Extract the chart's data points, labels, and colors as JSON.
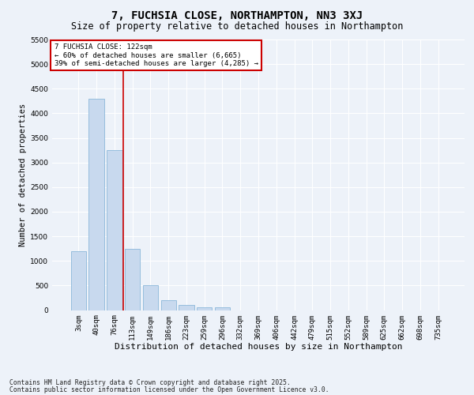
{
  "title": "7, FUCHSIA CLOSE, NORTHAMPTON, NN3 3XJ",
  "subtitle": "Size of property relative to detached houses in Northampton",
  "xlabel": "Distribution of detached houses by size in Northampton",
  "ylabel": "Number of detached properties",
  "categories": [
    "3sqm",
    "40sqm",
    "76sqm",
    "113sqm",
    "149sqm",
    "186sqm",
    "223sqm",
    "259sqm",
    "296sqm",
    "332sqm",
    "369sqm",
    "406sqm",
    "442sqm",
    "479sqm",
    "515sqm",
    "552sqm",
    "589sqm",
    "625sqm",
    "662sqm",
    "698sqm",
    "735sqm"
  ],
  "bar_values": [
    1200,
    4300,
    3250,
    1250,
    500,
    200,
    100,
    55,
    50,
    0,
    0,
    0,
    0,
    0,
    0,
    0,
    0,
    0,
    0,
    0,
    0
  ],
  "bar_color": "#c8d9ee",
  "bar_edge_color": "#7aadd4",
  "vline_x": 2.5,
  "vline_color": "#cc0000",
  "ylim": [
    0,
    5500
  ],
  "yticks": [
    0,
    500,
    1000,
    1500,
    2000,
    2500,
    3000,
    3500,
    4000,
    4500,
    5000,
    5500
  ],
  "annotation_text": "7 FUCHSIA CLOSE: 122sqm\n← 60% of detached houses are smaller (6,665)\n39% of semi-detached houses are larger (4,285) →",
  "annotation_box_color": "#ffffff",
  "annotation_border_color": "#cc0000",
  "footnote1": "Contains HM Land Registry data © Crown copyright and database right 2025.",
  "footnote2": "Contains public sector information licensed under the Open Government Licence v3.0.",
  "background_color": "#edf2f9",
  "grid_color": "#ffffff",
  "title_fontsize": 10,
  "subtitle_fontsize": 8.5,
  "xlabel_fontsize": 8,
  "ylabel_fontsize": 7.5,
  "tick_fontsize": 6.5,
  "annotation_fontsize": 6.5,
  "footnote_fontsize": 5.8
}
